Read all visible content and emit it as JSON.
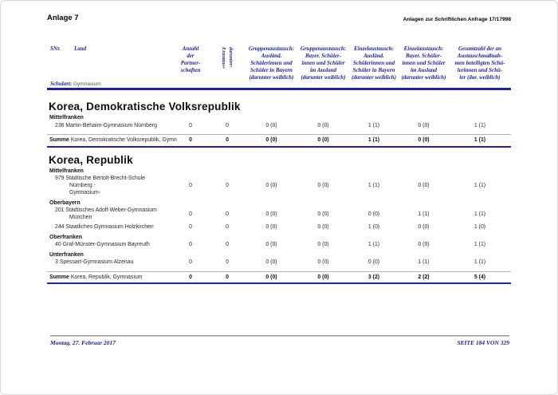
{
  "colors": {
    "navy": "#20209a"
  },
  "page": {
    "title_left": "Anlage 7",
    "title_right": "Anlagen zur Schriftlichen Anfrage 17/17998",
    "footer_left": "Montag, 27. Februar 2017",
    "footer_right": "SEITE 184 VON 329"
  },
  "table_header": {
    "snr": "SNr.",
    "land": "Land",
    "schulart_label": "Schulart:",
    "schulart_value": "Gymnasium",
    "col_partnerschaften": "Anzahl\nder\nPartner-\nschaften",
    "col_erasmus": "darunter:\nErasmus+",
    "col_gruppe_bayern": "Gruppenaustausch:\nAusländ.\nSchülerinnen und\nSchüler in Bayern\n(darunter weiblich)",
    "col_gruppe_ausland": "Gruppenaustausch:\nBayer. Schüler-\ninnen und Schüler\nim Ausland\n(darunter weiblich)",
    "col_einzel_bayern": "Einzelaustausch:\nAusländ.\nSchülerinnen und\nSchüler in Bayern\n(darunter weiblich)",
    "col_einzel_ausland": "Einzelaustausch:\nBayer. Schüler-\ninnen und Schüler\nim Ausland\n(darunter weiblich)",
    "col_gesamt": "Gesamtzahl der an\nAustauschmaßnah-\nmen beteiligten Schü-\nlerinnen und Schü-\nler (dar. weiblich)"
  },
  "sections": [
    {
      "title": "Korea, Demokratische Volksrepublik",
      "groups": [
        {
          "region": "Mittelfranken",
          "schools": [
            {
              "name": "236 Martin-Behaim-Gymnasium Nürnberg",
              "values": [
                "0",
                "0",
                "0 (0)",
                "0 (0)",
                "1 (1)",
                "0 (0)",
                "1 (1)"
              ]
            }
          ]
        }
      ],
      "summe": {
        "label_bold": "Summe",
        "label_rest": " Korea, Demokratische Volksrepublik, Gymn",
        "values": [
          "0",
          "0",
          "0 (0)",
          "0 (0)",
          "1 (1)",
          "0 (0)",
          "1 (1)"
        ]
      }
    },
    {
      "title": "Korea, Republik",
      "groups": [
        {
          "region": "Mittelfranken",
          "schools": [
            {
              "name": "979 Städtische Bertolt-Brecht-Schule Nürnberg -\nGymnasium-",
              "values": [
                "0",
                "0",
                "0 (0)",
                "0 (0)",
                "1 (1)",
                "0 (0)",
                "1 (1)"
              ]
            }
          ]
        },
        {
          "region": "Oberbayern",
          "schools": [
            {
              "name": "201 Städtisches Adolf-Weber-Gymnasium\nMünchen",
              "values": [
                "0",
                "0",
                "0 (0)",
                "0 (0)",
                "0 (0)",
                "1 (1)",
                "1 (1)"
              ]
            },
            {
              "name": "244 Staatliches Gymnasium Holzkirchen",
              "values": [
                "0",
                "0",
                "0 (0)",
                "0 (0)",
                "1 (0)",
                "0 (0)",
                "1 (0)"
              ]
            }
          ]
        },
        {
          "region": "Oberfranken",
          "schools": [
            {
              "name": "40 Graf-Münster-Gymnasium Bayreuth",
              "values": [
                "0",
                "0",
                "0 (0)",
                "0 (0)",
                "1 (1)",
                "0 (0)",
                "1 (1)"
              ]
            }
          ]
        },
        {
          "region": "Unterfranken",
          "schools": [
            {
              "name": "3 Spessart-Gymnasium Alzenau",
              "values": [
                "0",
                "0",
                "0 (0)",
                "0 (0)",
                "0 (0)",
                "1 (1)",
                "1 (1)"
              ]
            }
          ]
        }
      ],
      "summe": {
        "label_bold": "Summe",
        "label_rest": " Korea, Republik, Gymnasium",
        "values": [
          "0",
          "0",
          "0 (0)",
          "0 (0)",
          "3 (2)",
          "2 (2)",
          "5 (4)"
        ]
      }
    }
  ]
}
